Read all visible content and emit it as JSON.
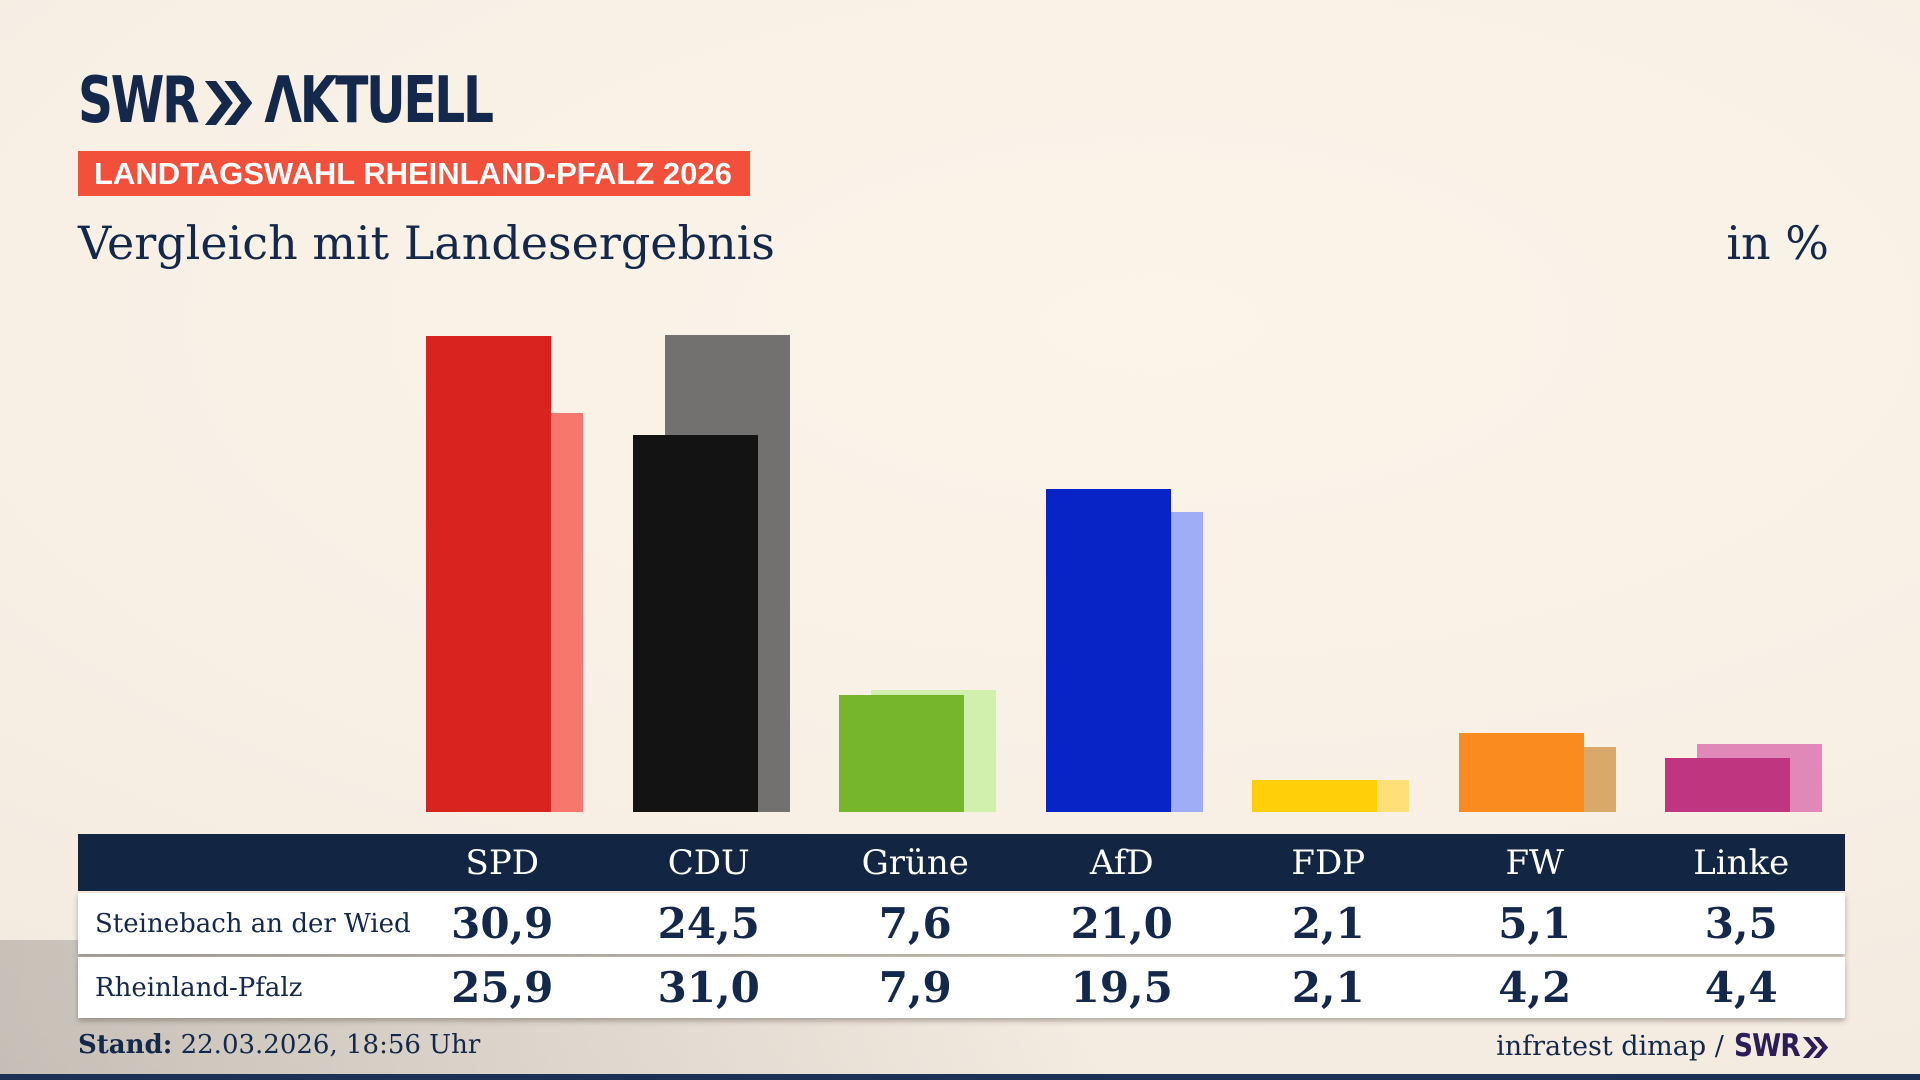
{
  "brand": {
    "swr": "SWR",
    "aktuell": "ΛKTUELL"
  },
  "badge": {
    "label": "LANDTAGSWAHL RHEINLAND-PFALZ 2026"
  },
  "title": "Vergleich mit Landesergebnis",
  "unit_label": "in %",
  "chart_data": {
    "type": "bar",
    "categories": [
      "SPD",
      "CDU",
      "Grüne",
      "AfD",
      "FDP",
      "FW",
      "Linke"
    ],
    "series": [
      {
        "name": "Steinebach an der Wied",
        "values": [
          30.9,
          24.5,
          7.6,
          21.0,
          2.1,
          5.1,
          3.5
        ]
      },
      {
        "name": "Rheinland-Pfalz",
        "values": [
          25.9,
          31.0,
          7.9,
          19.5,
          2.1,
          4.2,
          4.4
        ]
      }
    ],
    "unit": "%",
    "ylim": [
      0,
      31
    ],
    "grid": false,
    "legend_position": "table-below",
    "colors": {
      "main": [
        "#d8231f",
        "#131313",
        "#75b62b",
        "#0823c6",
        "#ffd00a",
        "#fa8c1f",
        "#c0357f"
      ],
      "light": [
        "#f7776d",
        "#737170",
        "#d2f0ad",
        "#9fadf6",
        "#ffdf78",
        "#d9a96c",
        "#e089b8"
      ]
    }
  },
  "table": {
    "header": [
      "SPD",
      "CDU",
      "Grüne",
      "AfD",
      "FDP",
      "FW",
      "Linke"
    ],
    "rows": [
      {
        "label": "Steinebach an der Wied",
        "values": [
          "30,9",
          "24,5",
          "7,6",
          "21,0",
          "2,1",
          "5,1",
          "3,5"
        ]
      },
      {
        "label": "Rheinland-Pfalz",
        "values": [
          "25,9",
          "31,0",
          "7,9",
          "19,5",
          "2,1",
          "4,2",
          "4,4"
        ]
      }
    ]
  },
  "footer": {
    "stand_label": "Stand:",
    "stand_value": " 22.03.2026, 18:56 Uhr",
    "source_text": "infratest dimap /",
    "source_logo": "SWR"
  },
  "colors": {
    "navy_text": "#13284a",
    "header_bg": "#122542",
    "badge_bg": "#f2503b",
    "background": "#f7efe4",
    "row_bg": "#ffffff",
    "footer_logo": "#2b1d55",
    "bottom_bar": "#1d3056"
  }
}
